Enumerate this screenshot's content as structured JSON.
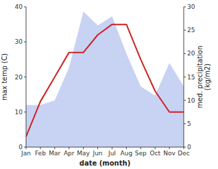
{
  "chart_data": {
    "type": "line",
    "x_label": "date (month)",
    "y_label": "max temp (C)",
    "y2_label": "med. precipitation\n(kg/m2)",
    "categories": [
      "Jan",
      "Feb",
      "Mar",
      "Apr",
      "May",
      "Jun",
      "Jul",
      "Aug",
      "Sep",
      "Oct",
      "Nov",
      "Dec"
    ],
    "series": [
      {
        "type": "area",
        "axis": "y2",
        "color": "#b0bfee",
        "values": [
          9,
          9,
          10,
          17,
          29,
          26,
          28,
          20,
          13,
          11,
          18,
          13
        ]
      },
      {
        "type": "line",
        "color": "#cc2222",
        "values": [
          3,
          13,
          20,
          27,
          27,
          32,
          35,
          35,
          25,
          16,
          10,
          10
        ]
      }
    ],
    "ylim": [
      0,
      40
    ],
    "yticks": [
      0,
      10,
      20,
      30,
      40
    ],
    "y2lim": [
      0,
      30
    ],
    "y2ticks": [
      0,
      5,
      10,
      15,
      20,
      25,
      30
    ],
    "grid": false
  }
}
